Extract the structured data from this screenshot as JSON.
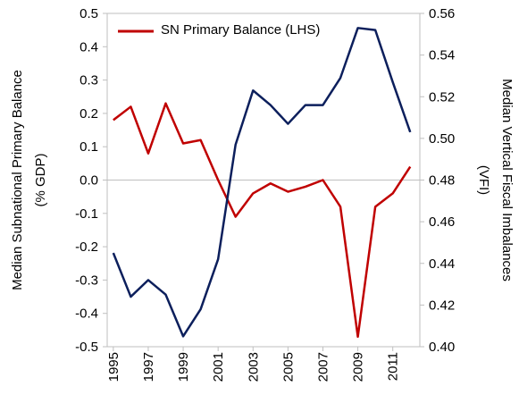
{
  "chart_data": {
    "type": "line",
    "ylabel": [
      "Median Subnational Primary Balance",
      "(% GDP)"
    ],
    "y2label": [
      "Median Vertical Fiscal Imbalances",
      "(VFI)"
    ],
    "x": [
      1995,
      1996,
      1997,
      1998,
      1999,
      2000,
      2001,
      2002,
      2003,
      2004,
      2005,
      2006,
      2007,
      2008,
      2009,
      2010,
      2011,
      2012
    ],
    "xlim": [
      1994.65,
      2012.55
    ],
    "xticks": [
      1995,
      1997,
      1999,
      2001,
      2003,
      2005,
      2007,
      2009,
      2011
    ],
    "ylim": [
      -0.5,
      0.5
    ],
    "yticks": [
      -0.5,
      -0.4,
      -0.3,
      -0.2,
      -0.1,
      {
        "value": 0,
        "label": "0.0"
      },
      0.1,
      0.2,
      0.3,
      0.4,
      0.5
    ],
    "y2lim": [
      0.4,
      0.56
    ],
    "y2ticks": [
      {
        "value": 0.4,
        "label": "0.40"
      },
      0.42,
      0.44,
      0.46,
      0.48,
      {
        "value": 0.5,
        "label": "0.50"
      },
      0.52,
      0.54,
      0.56
    ],
    "series": [
      {
        "name": "SN Primary Balance (LHS)",
        "color": "#c00000",
        "values": [
          0.18,
          0.22,
          0.08,
          0.23,
          0.11,
          0.12,
          0.0,
          -0.11,
          -0.04,
          -0.01,
          -0.035,
          -0.02,
          0.0,
          -0.08,
          -0.47,
          -0.08,
          -0.04,
          0.04
        ]
      },
      {
        "color": "#0c1f5c",
        "axis": "y2",
        "values": [
          0.445,
          0.424,
          0.432,
          0.425,
          0.405,
          0.418,
          0.442,
          0.497,
          0.523,
          0.516,
          0.507,
          0.516,
          0.516,
          0.529,
          0.553,
          0.552,
          0.527,
          0.503
        ]
      }
    ]
  }
}
